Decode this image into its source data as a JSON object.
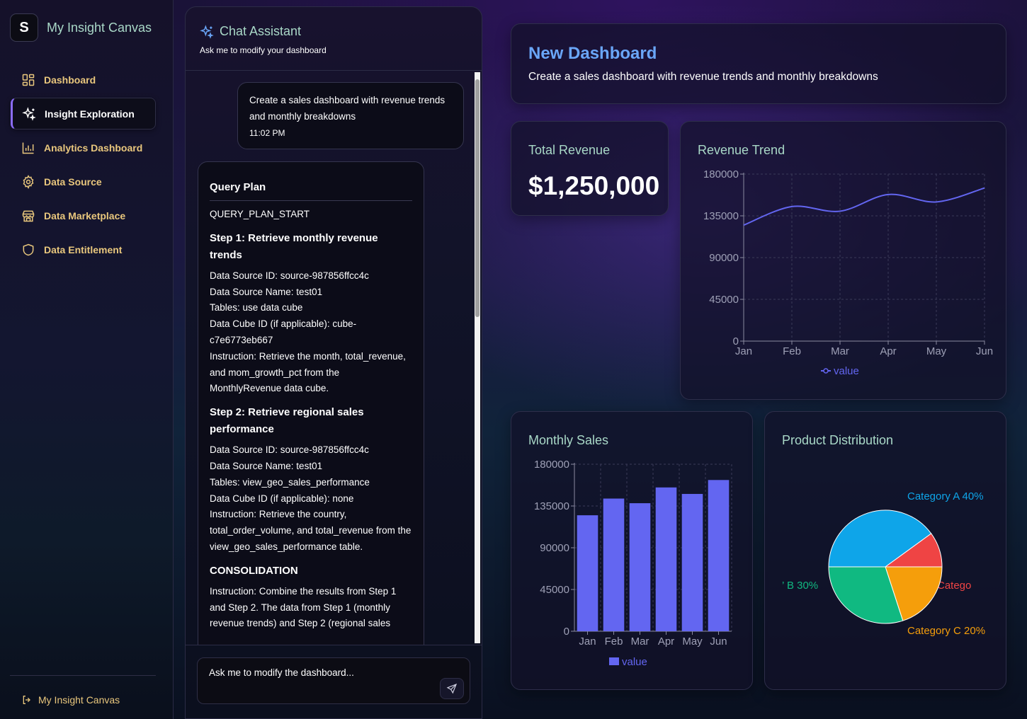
{
  "brand": {
    "logo_letter": "S",
    "name": "My Insight Canvas"
  },
  "nav": {
    "items": [
      {
        "label": "Dashboard",
        "icon": "layout-grid-icon"
      },
      {
        "label": "Insight Exploration",
        "icon": "sparkles-icon",
        "active": true
      },
      {
        "label": "Analytics Dashboard",
        "icon": "bar-chart-icon"
      },
      {
        "label": "Data Source",
        "icon": "gear-icon"
      },
      {
        "label": "Data Marketplace",
        "icon": "store-icon"
      },
      {
        "label": "Data Entitlement",
        "icon": "shield-icon"
      }
    ],
    "footer_label": "My Insight Canvas"
  },
  "chat": {
    "title": "Chat Assistant",
    "subtitle": "Ask me to modify your dashboard",
    "user_message": {
      "text": "Create a sales dashboard with revenue trends and monthly breakdowns",
      "time": "11:02 PM"
    },
    "plan": {
      "title": "Query Plan",
      "start_marker": "QUERY_PLAN_START",
      "step1_title": "Step 1: Retrieve monthly revenue trends",
      "step1_lines": [
        "Data Source ID: source-987856ffcc4c",
        "Data Source Name: test01",
        "Tables: use data cube",
        "Data Cube ID (if applicable): cube-c7e6773eb667",
        "Instruction: Retrieve the month, total_revenue, and mom_growth_pct from the MonthlyRevenue data cube."
      ],
      "step2_title": "Step 2: Retrieve regional sales performance",
      "step2_lines": [
        "Data Source ID: source-987856ffcc4c",
        "Data Source Name: test01",
        "Tables: view_geo_sales_performance",
        "Data Cube ID (if applicable): none",
        "Instruction: Retrieve the country, total_order_volume, and total_revenue from the view_geo_sales_performance table."
      ],
      "consolidation_title": "CONSOLIDATION",
      "consolidation_text": "Instruction: Combine the results from Step 1 and Step 2. The data from Step 1 (monthly revenue trends) and Step 2 (regional sales"
    },
    "input_placeholder": "Ask me to modify the dashboard..."
  },
  "dashboard": {
    "title": "New Dashboard",
    "description": "Create a sales dashboard with revenue trends and monthly breakdowns",
    "total_revenue": {
      "label": "Total Revenue",
      "value": "$1,250,000"
    },
    "revenue_trend_title": "Revenue Trend",
    "monthly_sales_title": "Monthly Sales",
    "product_distribution_title": "Product Distribution"
  },
  "colors": {
    "series": "#6366f1",
    "pie": [
      "#0ea5e9",
      "#ef4444",
      "#f59e0b",
      "#10b981"
    ]
  },
  "chart_data": [
    {
      "type": "line",
      "title": "Revenue Trend",
      "categories": [
        "Jan",
        "Feb",
        "Mar",
        "Apr",
        "May",
        "Jun"
      ],
      "series": [
        {
          "name": "value",
          "values": [
            125000,
            145000,
            140000,
            158000,
            150000,
            165000
          ]
        }
      ],
      "ylim": [
        0,
        180000
      ],
      "yticks": [
        0,
        45000,
        90000,
        135000,
        180000
      ],
      "grid": true,
      "smooth": true,
      "legend": "bottom"
    },
    {
      "type": "bar",
      "title": "Monthly Sales",
      "categories": [
        "Jan",
        "Feb",
        "Mar",
        "Apr",
        "May",
        "Jun"
      ],
      "series": [
        {
          "name": "value",
          "values": [
            125000,
            143000,
            138000,
            155000,
            148000,
            163000
          ]
        }
      ],
      "ylim": [
        0,
        180000
      ],
      "yticks": [
        0,
        45000,
        90000,
        135000,
        180000
      ],
      "grid": true,
      "legend": "bottom"
    },
    {
      "type": "pie",
      "title": "Product Distribution",
      "slices": [
        {
          "label": "Category A 40%",
          "value": 40
        },
        {
          "label": "Catego",
          "value": 10
        },
        {
          "label": "Category C 20%",
          "value": 20
        },
        {
          "label": "’ B 30%",
          "value": 30
        }
      ]
    }
  ]
}
